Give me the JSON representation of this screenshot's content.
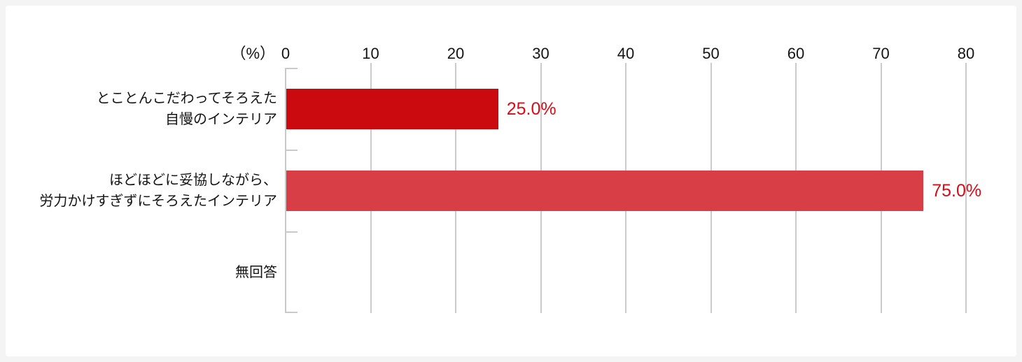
{
  "chart_data": {
    "type": "bar",
    "orientation": "horizontal",
    "title": "",
    "unit_label": "（%）",
    "categories": [
      "とことんこだわってそろえた\n自慢のインテリア",
      "ほどほどに妥協しながら、\n労力かけすぎずにそろえたインテリア",
      "無回答"
    ],
    "values": [
      25.0,
      75.0,
      0
    ],
    "value_labels": [
      "25.0%",
      "75.0%",
      ""
    ],
    "xlim": [
      0,
      80
    ],
    "x_ticks": [
      0,
      10,
      20,
      30,
      40,
      50,
      60,
      70,
      80
    ],
    "grid": true,
    "legend": false,
    "bar_colors": [
      "#cb0a10",
      "#d83e46",
      null
    ],
    "value_label_color": "#d60d17",
    "gridline_color": "#cbcbcb",
    "axis_color": "#c9c9c9",
    "panel_background": "#ffffff",
    "frame_background": "#f4f4f5"
  }
}
